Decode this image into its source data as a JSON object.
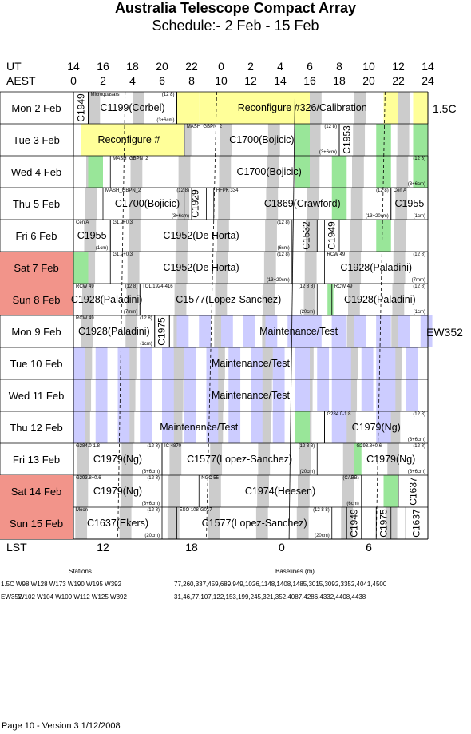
{
  "title": "Australia Telescope Compact Array",
  "subtitle": "Schedule:- 2  Feb - 15 Feb",
  "axes": {
    "ut_label": "UT",
    "aest_label": "AEST",
    "lst_label": "LST",
    "ut_ticks": [
      "14",
      "16",
      "18",
      "20",
      "22",
      "0",
      "2",
      "4",
      "6",
      "8",
      "10",
      "12",
      "14"
    ],
    "aest_ticks": [
      "0",
      "2",
      "4",
      "6",
      "8",
      "10",
      "12",
      "14",
      "16",
      "18",
      "20",
      "22",
      "24"
    ],
    "lst_ticks": [
      "12",
      "18",
      "0",
      "6"
    ]
  },
  "days": [
    {
      "label": "Mon   2 Feb",
      "weekend": false
    },
    {
      "label": "Tue   3 Feb",
      "weekend": false
    },
    {
      "label": "Wed   4 Feb",
      "weekend": false
    },
    {
      "label": "Thu   5 Feb",
      "weekend": false
    },
    {
      "label": "Fri   6 Feb",
      "weekend": false
    },
    {
      "label": "Sat   7 Feb",
      "weekend": true
    },
    {
      "label": "Sun   8 Feb",
      "weekend": true
    },
    {
      "label": "Mon   9 Feb",
      "weekend": false
    },
    {
      "label": "Tue   10 Feb",
      "weekend": false
    },
    {
      "label": "Wed  11 Feb",
      "weekend": false
    },
    {
      "label": "Thu   12 Feb",
      "weekend": false
    },
    {
      "label": "Fri   13 Feb",
      "weekend": false
    },
    {
      "label": "Sat   14 Feb",
      "weekend": true
    },
    {
      "label": "Sun   15 Feb",
      "weekend": true
    }
  ],
  "configs": [
    {
      "name": "1.5C"
    },
    {
      "name": "EW352"
    }
  ],
  "blocks": [
    {
      "id": "C1949a",
      "text": "C1949",
      "vertical": true
    },
    {
      "id": "C1199",
      "text": "C1199(Corbel)",
      "tl": "Microquasars",
      "tr": "(12 8)",
      "br": "(3+6cm)"
    },
    {
      "id": "reconf326",
      "text": "Reconfigure #326/Calibration"
    },
    {
      "id": "reconfT",
      "text": "Reconfigure #"
    },
    {
      "id": "C1700a",
      "text": "C1700(Bojicic)",
      "tl": "MASH_GBPN_2",
      "tr": "(12 8)",
      "br": "(3+6cm)"
    },
    {
      "id": "C1953",
      "text": "C1953",
      "vertical": true
    },
    {
      "id": "C1700b",
      "text": "C1700(Bojicic)",
      "tl": "MASH_GBPN_2",
      "tr": "(12 8)",
      "br": "(3+6cm)"
    },
    {
      "id": "C1700c",
      "text": "C1700(Bojicic)",
      "tl": "MASH_GBPN_2",
      "tr": "(12 8)",
      "br": "(3+6cm)"
    },
    {
      "id": "C1929",
      "text": "C1929",
      "vertical": true
    },
    {
      "id": "C1869",
      "text": "C1869(Crawford)",
      "tl": "HFPK 334",
      "tr": "(12 8)",
      "br": "(13+20cm)"
    },
    {
      "id": "C1955a",
      "text": "C1955",
      "tl": "Cen A",
      "br": "(1cm)"
    },
    {
      "id": "C1955b",
      "text": "C1955",
      "tl": "Cen A",
      "br": "(1cm)"
    },
    {
      "id": "C1952a",
      "text": "C1952(De Horta)",
      "tl": "G1.9+0.3",
      "tr": "(12 8)",
      "br": "(6cm)"
    },
    {
      "id": "C1532",
      "text": "C1532",
      "vertical": true
    },
    {
      "id": "C1949b",
      "text": "C1949",
      "vertical": true
    },
    {
      "id": "C1952b",
      "text": "C1952(De Horta)",
      "tl": "G1.9+0.3",
      "tr": "(12 8)",
      "br": "(13+20cm)"
    },
    {
      "id": "C1928a",
      "text": "C1928(Paladini)",
      "tl": "RCW 49",
      "tr": "(12 8)",
      "br": "(7mm)"
    },
    {
      "id": "C1928b",
      "text": "C1928(Paladini)",
      "tl": "RCW 49",
      "tr": "(12 8)",
      "br": "(7mm)"
    },
    {
      "id": "C1577a",
      "text": "C1577(Lopez-Sanchez)",
      "tl": "TOL 1924-416",
      "tr": "(12 8 8)",
      "br": "(20cm)"
    },
    {
      "id": "C1928c",
      "text": "C1928(Paladini)",
      "tl": "RCW 49",
      "tr": "(12 8)",
      "br": "(1cm)"
    },
    {
      "id": "C1928d",
      "text": "C1928(Paladini)",
      "tl": "RCW 49",
      "tr": "(12 8)",
      "br": "(1cm)"
    },
    {
      "id": "C1975a",
      "text": "C1975",
      "vertical": true
    },
    {
      "id": "mt1",
      "text": "Maintenance/Test"
    },
    {
      "id": "mt2",
      "text": "Maintenance/Test"
    },
    {
      "id": "mt3",
      "text": "Maintenance/Test"
    },
    {
      "id": "mt4",
      "text": "Maintenance/Test"
    },
    {
      "id": "C1979a",
      "text": "C1979(Ng)",
      "tl": "G284.0-1.8",
      "tr": "(12 8)",
      "br": "(3+6cm)"
    },
    {
      "id": "C1979b",
      "text": "C1979(Ng)",
      "tl": "G284.0-1.8",
      "tr": "(12 8)",
      "br": "(3+6cm)"
    },
    {
      "id": "C1577b",
      "text": "C1577(Lopez-Sanchez)",
      "tl": "IC 4870",
      "tr": "(12 8 8)",
      "br": "(20cm)"
    },
    {
      "id": "C1979c",
      "text": "C1979(Ng)",
      "tl": "G293.8+0.6",
      "tr": "(12 8)",
      "br": "(3+6cm)"
    },
    {
      "id": "C1979d",
      "text": "C1979(Ng)",
      "tl": "G293.8+0.6",
      "tr": "(12 8)",
      "br": "(3+6cm)"
    },
    {
      "id": "C1974",
      "text": "C1974(Heesen)",
      "tl": "NGC 55",
      "tr": "(CABB)",
      "br": "(6cm)"
    },
    {
      "id": "C1637a",
      "text": "C1637",
      "vertical": true
    },
    {
      "id": "C1637b",
      "text": "C1637(Ekers)",
      "tl": "Moon",
      "tr": "(12 8)",
      "br": "(20cm)"
    },
    {
      "id": "C1577c",
      "text": "C1577(Lopez-Sanchez)",
      "tl": "ESO 108-G017",
      "tr": "(12 8 8)",
      "br": "(20cm)"
    },
    {
      "id": "C1949c",
      "text": "C1949",
      "vertical": true
    },
    {
      "id": "C1975b",
      "text": "C1975",
      "vertical": true
    },
    {
      "id": "C1637c",
      "text": "C1637",
      "vertical": true
    }
  ],
  "footer": {
    "stations_heading": "Stations",
    "baselines_heading": "Baselines (m)",
    "rows": [
      {
        "config": "1.5C",
        "stations": "W98 W128 W173 W190 W195 W392",
        "baselines": "77,260,337,459,689,949,1026,1148,1408,1485,3015,3092,3352,4041,4500"
      },
      {
        "config": "EW352",
        "stations": "W102 W104 W109 W112 W125 W392",
        "baselines": "31,46,77,107,122,153,199,245,321,352,4087,4286,4332,4408,4438"
      }
    ],
    "page_info": "Page 10 - Version 3  1/12/2008"
  },
  "colors": {
    "weekend": "#f2948a",
    "reconfig": "#ffff99",
    "sun": "#99e699",
    "maint": "#ccccff",
    "lstband": "#cccccc"
  }
}
